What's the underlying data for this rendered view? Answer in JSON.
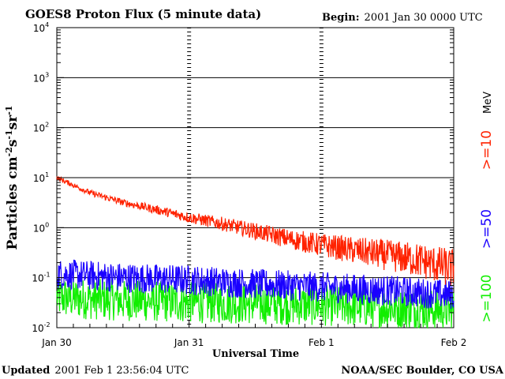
{
  "header": {
    "title": "GOES8 Proton Flux (5 minute data)",
    "begin_label": "Begin:",
    "begin_value": "2001 Jan 30 0000 UTC"
  },
  "footer": {
    "updated_label": "Updated",
    "updated_value": "2001 Feb  1 23:56:04 UTC",
    "source": "NOAA/SEC Boulder, CO USA"
  },
  "chart_data": {
    "type": "line",
    "title": "GOES8 Proton Flux (5 minute data)",
    "xlabel": "Universal Time",
    "ylabel": "Particles cm-2s-1sr-1",
    "yscale": "log",
    "ylim": [
      0.01,
      10000
    ],
    "xlim": [
      "2001-01-30 00:00",
      "2001-02-02 00:00"
    ],
    "grid": true,
    "x_ticks": [
      {
        "value": "2001-01-30 00:00",
        "label": "Jan 30"
      },
      {
        "value": "2001-01-31 00:00",
        "label": "Jan 31"
      },
      {
        "value": "2001-02-01 00:00",
        "label": "Feb 1"
      },
      {
        "value": "2001-02-02 00:00",
        "label": "Feb 2"
      }
    ],
    "y_ticks": [
      {
        "value": 0.01,
        "base": "10",
        "exp": "-2"
      },
      {
        "value": 0.1,
        "base": "10",
        "exp": "-1"
      },
      {
        "value": 1,
        "base": "10",
        "exp": "0"
      },
      {
        "value": 10,
        "base": "10",
        "exp": "1"
      },
      {
        "value": 100,
        "base": "10",
        "exp": "2"
      },
      {
        "value": 1000,
        "base": "10",
        "exp": "3"
      },
      {
        "value": 10000,
        "base": "10",
        "exp": "4"
      }
    ],
    "legend_position": "right",
    "legend_unit": "MeV",
    "series": [
      {
        "name": ">=10",
        "color": "#ff2200",
        "x": [
          "2001-01-30 00:00",
          "2001-01-30 06:00",
          "2001-01-30 12:00",
          "2001-01-30 18:00",
          "2001-01-31 00:00",
          "2001-01-31 06:00",
          "2001-01-31 12:00",
          "2001-01-31 18:00",
          "2001-02-01 00:00",
          "2001-02-01 06:00",
          "2001-02-01 12:00",
          "2001-02-01 18:00",
          "2001-02-02 00:00"
        ],
        "y": [
          10,
          5,
          3.2,
          2.3,
          1.6,
          1.2,
          0.85,
          0.6,
          0.45,
          0.35,
          0.28,
          0.22,
          0.15
        ]
      },
      {
        "name": ">=50",
        "color": "#1a00ff",
        "x": [
          "2001-01-30 00:00",
          "2001-01-30 12:00",
          "2001-01-31 00:00",
          "2001-01-31 12:00",
          "2001-02-01 00:00",
          "2001-02-01 12:00",
          "2001-02-02 00:00"
        ],
        "y": [
          0.12,
          0.1,
          0.09,
          0.075,
          0.065,
          0.055,
          0.045
        ]
      },
      {
        "name": ">=100",
        "color": "#11ee00",
        "x": [
          "2001-01-30 00:00",
          "2001-01-30 12:00",
          "2001-01-31 00:00",
          "2001-01-31 12:00",
          "2001-02-01 00:00",
          "2001-02-01 12:00",
          "2001-02-02 00:00"
        ],
        "y": [
          0.04,
          0.035,
          0.032,
          0.03,
          0.028,
          0.025,
          0.022
        ]
      }
    ]
  }
}
